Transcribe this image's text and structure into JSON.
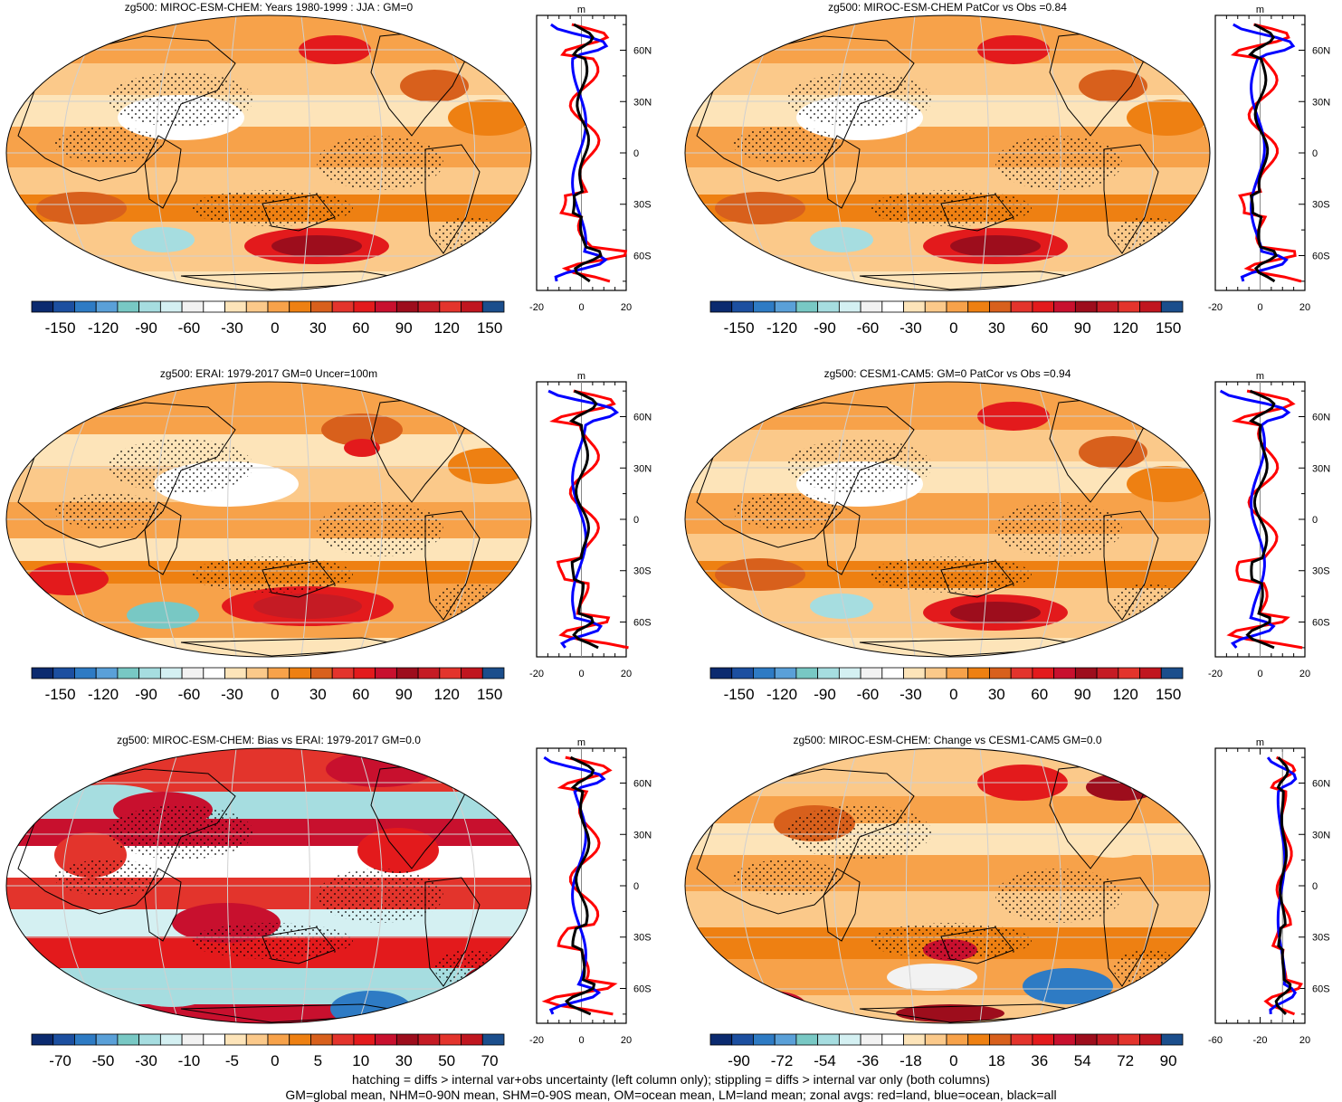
{
  "palette_colors": [
    "#0b2a6f",
    "#1c4fa0",
    "#2e7bc4",
    "#5aa0d8",
    "#78c8c4",
    "#a6dde0",
    "#d4f0f2",
    "#f2f2f2",
    "#ffffff",
    "#fde4b9",
    "#fbc98a",
    "#f7a24a",
    "#ee8012",
    "#d8601c",
    "#e3342c",
    "#e31a1c",
    "#c8102e",
    "#9d0d1c",
    "#c51b24",
    "#e3342c",
    "#c0161f",
    "#1b4e8c"
  ],
  "zonal_colors": {
    "land": "#ff0000",
    "ocean": "#0000ff",
    "all": "#000000"
  },
  "zonal_axis": {
    "unit": "m",
    "lat_labels": [
      "60N",
      "30N",
      "0",
      "30S",
      "60S"
    ]
  },
  "footer": {
    "line1": "hatching = diffs > internal var+obs uncertainty (left column only); stippling = diffs > internal var only (both columns)",
    "line2": "GM=global mean, NHM=0-90N mean, SHM=0-90S mean, OM=ocean mean, LM=land mean; zonal avgs: red=land, blue=ocean, black=all"
  },
  "chart_data": [
    {
      "type": "heatmap",
      "title": "zg500: MIROC-ESM-CHEM: Years 1980-1999 : JJA : GM=0",
      "colorbar_labels": [
        "-150",
        "-120",
        "-90",
        "-60",
        "-30",
        "0",
        "30",
        "60",
        "90",
        "120",
        "150"
      ],
      "zonal_xlim": [
        -20,
        20
      ],
      "zonal_xticks": [
        "-20",
        "0",
        "20"
      ]
    },
    {
      "type": "heatmap",
      "title": "zg500: MIROC-ESM-CHEM PatCor vs Obs =0.84",
      "colorbar_labels": [
        "-150",
        "-120",
        "-90",
        "-60",
        "-30",
        "0",
        "30",
        "60",
        "90",
        "120",
        "150"
      ],
      "zonal_xlim": [
        -20,
        20
      ],
      "zonal_xticks": [
        "-20",
        "0",
        "20"
      ]
    },
    {
      "type": "heatmap",
      "title": "zg500: ERAI: 1979-2017 GM=0 Uncer=100m",
      "colorbar_labels": [
        "-150",
        "-120",
        "-90",
        "-60",
        "-30",
        "0",
        "30",
        "60",
        "90",
        "120",
        "150"
      ],
      "zonal_xlim": [
        -20,
        20
      ],
      "zonal_xticks": [
        "-20",
        "0",
        "20"
      ]
    },
    {
      "type": "heatmap",
      "title": "zg500: CESM1-CAM5: GM=0 PatCor vs Obs =0.94",
      "colorbar_labels": [
        "-150",
        "-120",
        "-90",
        "-60",
        "-30",
        "0",
        "30",
        "60",
        "90",
        "120",
        "150"
      ],
      "zonal_xlim": [
        -20,
        20
      ],
      "zonal_xticks": [
        "-20",
        "0",
        "20"
      ]
    },
    {
      "type": "heatmap",
      "title": "zg500: MIROC-ESM-CHEM: Bias vs ERAI: 1979-2017 GM=0.0",
      "colorbar_labels": [
        "-70",
        "-50",
        "-30",
        "-10",
        "-5",
        "0",
        "5",
        "10",
        "30",
        "50",
        "70"
      ],
      "zonal_xlim": [
        -20,
        20
      ],
      "zonal_xticks": [
        "-20",
        "0",
        "20"
      ]
    },
    {
      "type": "heatmap",
      "title": "zg500: MIROC-ESM-CHEM: Change vs CESM1-CAM5 GM=0.0",
      "colorbar_labels": [
        "-90",
        "-72",
        "-54",
        "-36",
        "-18",
        "0",
        "18",
        "36",
        "54",
        "72",
        "90"
      ],
      "zonal_xlim": [
        -60,
        20
      ],
      "zonal_xticks": [
        "-60",
        "-20",
        "20"
      ]
    }
  ]
}
